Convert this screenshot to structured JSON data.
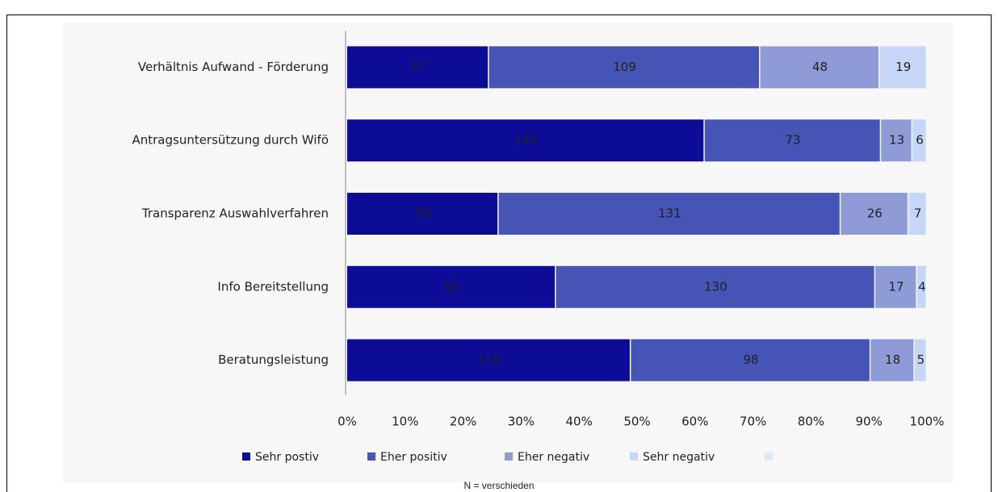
{
  "chart_data": {
    "type": "bar",
    "orientation": "horizontal",
    "stacking": "percent",
    "categories": [
      "Verhältnis Aufwand - Förderung",
      "Antragsuntersützung durch Wifö",
      "Transparenz Auswahlverfahren",
      "Info Bereitstellung",
      "Beratungsleistung"
    ],
    "series": [
      {
        "name": "Sehr postiv",
        "color": "#0c0c96",
        "values": [
          57,
          148,
          58,
          85,
          116
        ]
      },
      {
        "name": "Eher positiv",
        "color": "#4654b6",
        "values": [
          109,
          73,
          131,
          130,
          98
        ]
      },
      {
        "name": "Eher negativ",
        "color": "#8f9bd6",
        "values": [
          48,
          13,
          26,
          17,
          18
        ]
      },
      {
        "name": "Sehr negativ",
        "color": "#c6d6f6",
        "values": [
          19,
          6,
          7,
          4,
          5
        ]
      }
    ],
    "xlim": [
      0,
      100
    ],
    "xticks": [
      {
        "value": 0,
        "label": "0%"
      },
      {
        "value": 10,
        "label": "10%"
      },
      {
        "value": 20,
        "label": "20%"
      },
      {
        "value": 30,
        "label": "30%"
      },
      {
        "value": 40,
        "label": "40%"
      },
      {
        "value": 50,
        "label": "50%"
      },
      {
        "value": 60,
        "label": "60%"
      },
      {
        "value": 70,
        "label": "70%"
      },
      {
        "value": 80,
        "label": "80%"
      },
      {
        "value": 90,
        "label": "90%"
      },
      {
        "value": 100,
        "label": "100%"
      }
    ],
    "legend": "bottom",
    "note": "N = verschieden"
  }
}
